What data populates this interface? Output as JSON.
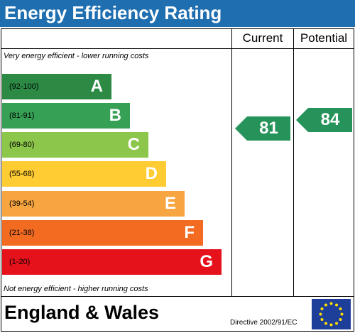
{
  "title": "Energy Efficiency Rating",
  "columns": {
    "current": "Current",
    "potential": "Potential"
  },
  "notes": {
    "top": "Very energy efficient - lower running costs",
    "bottom": "Not energy efficient - higher running costs"
  },
  "bands": [
    {
      "range": "(92-100)",
      "letter": "A",
      "color": "#2c8a45"
    },
    {
      "range": "(81-91)",
      "letter": "B",
      "color": "#36a055"
    },
    {
      "range": "(69-80)",
      "letter": "C",
      "color": "#8cc64a"
    },
    {
      "range": "(55-68)",
      "letter": "D",
      "color": "#ffcc33"
    },
    {
      "range": "(39-54)",
      "letter": "E",
      "color": "#f7a540"
    },
    {
      "range": "(21-38)",
      "letter": "F",
      "color": "#f26b21"
    },
    {
      "range": "(1-20)",
      "letter": "G",
      "color": "#e5121b"
    }
  ],
  "ratings": {
    "current": "81",
    "potential": "84"
  },
  "rating_color": "#26945a",
  "footer": {
    "country": "England & Wales",
    "directive": "Directive 2002/91/EC",
    "flag": "eu-flag-icon"
  }
}
